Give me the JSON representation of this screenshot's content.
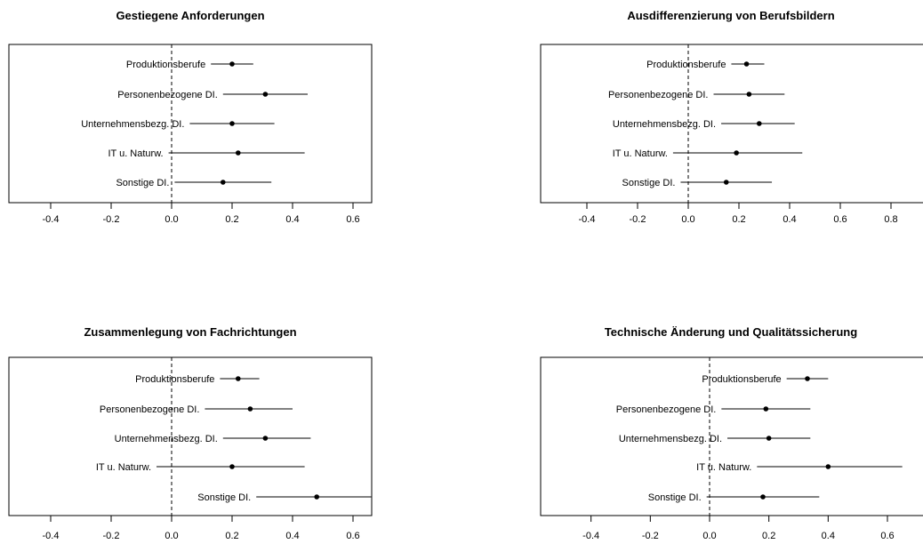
{
  "chart_data": [
    {
      "type": "scatter",
      "title": "Gestiegene Anforderungen",
      "xlabel": "",
      "ylabel": "",
      "xlim": [
        -0.55,
        0.75
      ],
      "xticks": [
        "-0.4",
        "-0.2",
        "0.0",
        "0.2",
        "0.4",
        "0.6"
      ],
      "reference_line": 0,
      "series": [
        {
          "label": "Produktionsberufe",
          "estimate": 0.2,
          "ci": [
            0.13,
            0.27
          ]
        },
        {
          "label": "Personenbezogene DI.",
          "estimate": 0.31,
          "ci": [
            0.17,
            0.45
          ]
        },
        {
          "label": "Unternehmensbezg. DI.",
          "estimate": 0.2,
          "ci": [
            0.06,
            0.34
          ]
        },
        {
          "label": "IT u. Naturw.",
          "estimate": 0.22,
          "ci": [
            -0.01,
            0.44
          ]
        },
        {
          "label": "Sonstige DI.",
          "estimate": 0.17,
          "ci": [
            0.01,
            0.33
          ]
        }
      ]
    },
    {
      "type": "scatter",
      "title": "Ausdifferenzierung von Berufsbildern",
      "xlabel": "",
      "ylabel": "",
      "xlim": [
        -0.55,
        0.88
      ],
      "xticks": [
        "-0.4",
        "-0.2",
        "0.0",
        "0.2",
        "0.4",
        "0.6",
        "0.8"
      ],
      "reference_line": 0,
      "series": [
        {
          "label": "Produktionsberufe",
          "estimate": 0.23,
          "ci": [
            0.17,
            0.3
          ]
        },
        {
          "label": "Personenbezogene DI.",
          "estimate": 0.24,
          "ci": [
            0.1,
            0.38
          ]
        },
        {
          "label": "Unternehmensbezg. DI.",
          "estimate": 0.28,
          "ci": [
            0.13,
            0.42
          ]
        },
        {
          "label": "IT u. Naturw.",
          "estimate": 0.19,
          "ci": [
            -0.06,
            0.45
          ]
        },
        {
          "label": "Sonstige DI.",
          "estimate": 0.15,
          "ci": [
            -0.03,
            0.33
          ]
        }
      ]
    },
    {
      "type": "scatter",
      "title": "Zusammenlegung von Fachrichtungen",
      "xlabel": "",
      "ylabel": "",
      "xlim": [
        -0.55,
        0.75
      ],
      "xticks": [
        "-0.4",
        "-0.2",
        "0.0",
        "0.2",
        "0.4",
        "0.6"
      ],
      "reference_line": 0,
      "series": [
        {
          "label": "Produktionsberufe",
          "estimate": 0.22,
          "ci": [
            0.16,
            0.29
          ]
        },
        {
          "label": "Personenbezogene DI.",
          "estimate": 0.26,
          "ci": [
            0.11,
            0.4
          ]
        },
        {
          "label": "Unternehmensbezg. DI.",
          "estimate": 0.31,
          "ci": [
            0.17,
            0.46
          ]
        },
        {
          "label": "IT u. Naturw.",
          "estimate": 0.2,
          "ci": [
            -0.05,
            0.44
          ]
        },
        {
          "label": "Sonstige DI.",
          "estimate": 0.48,
          "ci": [
            0.28,
            0.66
          ]
        }
      ]
    },
    {
      "type": "scatter",
      "title": "Technische Änderung und Qualitätssicherung",
      "xlabel": "",
      "ylabel": "",
      "xlim": [
        -0.55,
        0.75
      ],
      "xticks": [
        "-0.4",
        "-0.2",
        "0.0",
        "0.2",
        "0.4",
        "0.6"
      ],
      "reference_line": 0,
      "series": [
        {
          "label": "Produktionsberufe",
          "estimate": 0.33,
          "ci": [
            0.26,
            0.4
          ]
        },
        {
          "label": "Personenbezogene DI.",
          "estimate": 0.19,
          "ci": [
            0.04,
            0.34
          ]
        },
        {
          "label": "Unternehmensbezg. DI.",
          "estimate": 0.2,
          "ci": [
            0.06,
            0.34
          ]
        },
        {
          "label": "IT u. Naturw.",
          "estimate": 0.4,
          "ci": [
            0.16,
            0.65
          ]
        },
        {
          "label": "Sonstige DI.",
          "estimate": 0.18,
          "ci": [
            -0.01,
            0.37
          ]
        }
      ]
    }
  ]
}
